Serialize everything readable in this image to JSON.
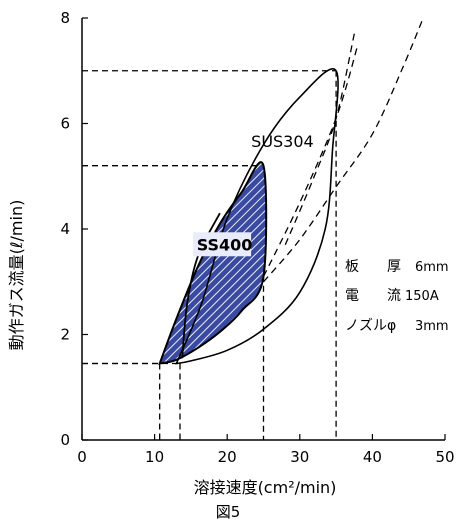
{
  "chart_data": {
    "type": "scatter",
    "xlabel": "溶接速度(cm²/min)",
    "ylabel": "動作ガス流量(ℓ/min)",
    "xlim": [
      0,
      50
    ],
    "ylim": [
      0,
      8
    ],
    "xticks": [
      "0",
      "10",
      "20",
      "30",
      "40",
      "50"
    ],
    "yticks": [
      "0",
      "2",
      "4",
      "6",
      "8"
    ],
    "grid": false,
    "caption": "図5",
    "series": [
      {
        "name": "SUS304",
        "style": "solid outline",
        "points": [
          [
            13.0,
            1.45
          ],
          [
            16.5,
            2.6
          ],
          [
            20.0,
            4.2
          ],
          [
            25.0,
            5.6
          ],
          [
            30.0,
            6.5
          ],
          [
            35.0,
            7.0
          ],
          [
            34.5,
            5.5
          ],
          [
            33.5,
            4.0
          ],
          [
            30.0,
            2.8
          ],
          [
            25.0,
            2.1
          ],
          [
            20.0,
            1.7
          ],
          [
            15.0,
            1.5
          ],
          [
            13.0,
            1.45
          ]
        ]
      },
      {
        "name": "SS400",
        "style": "hatched region",
        "fill": "#3a4aa0",
        "points": [
          [
            10.7,
            1.45
          ],
          [
            13.0,
            2.3
          ],
          [
            16.0,
            3.3
          ],
          [
            19.0,
            4.1
          ],
          [
            22.0,
            4.7
          ],
          [
            25.0,
            5.2
          ],
          [
            25.0,
            3.1
          ],
          [
            22.0,
            2.45
          ],
          [
            19.0,
            2.05
          ],
          [
            16.0,
            1.75
          ],
          [
            13.0,
            1.52
          ],
          [
            10.7,
            1.45
          ]
        ],
        "dashed_boundary": [
          [
            25.0,
            3.1
          ],
          [
            30.0,
            4.5
          ],
          [
            35.0,
            6.1
          ],
          [
            38.0,
            7.5
          ]
        ],
        "inner_line": [
          [
            13.8,
            1.55
          ],
          [
            14.5,
            2.6
          ],
          [
            16.0,
            3.5
          ],
          [
            19.0,
            4.3
          ]
        ]
      }
    ],
    "limit_curves": [
      {
        "style": "dashed",
        "points": [
          [
            28.0,
            3.7
          ],
          [
            32.0,
            5.0
          ],
          [
            35.0,
            6.1
          ],
          [
            37.5,
            7.7
          ]
        ]
      },
      {
        "style": "dashed",
        "points": [
          [
            25.0,
            3.0
          ],
          [
            30.0,
            3.8
          ],
          [
            35.0,
            4.8
          ],
          [
            40.0,
            5.8
          ],
          [
            44.0,
            7.0
          ],
          [
            47.0,
            8.0
          ]
        ]
      }
    ],
    "reference_lines": [
      {
        "x": 35.0,
        "y": 7.0
      },
      {
        "x": 25.0,
        "y": 5.2
      },
      {
        "x": 10.7,
        "y": 1.45
      },
      {
        "x": 13.5,
        "y": 1.45
      }
    ],
    "annotations": {
      "thickness_label": "板　　厚",
      "thickness_value": "6mm",
      "current_label": "電　　流",
      "current_value": "150A",
      "nozzle_label": "ノズルφ",
      "nozzle_value": "3mm"
    }
  }
}
